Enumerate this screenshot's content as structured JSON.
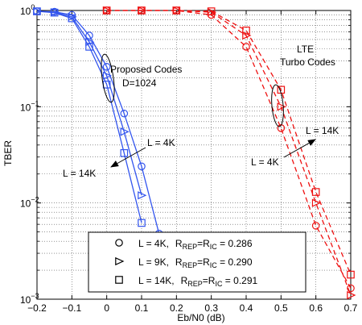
{
  "chart_data": {
    "type": "line",
    "xlabel": "Eb/N0 (dB)",
    "ylabel": "TBER",
    "xlim": [
      -0.2,
      0.7
    ],
    "ylim": [
      0.001,
      1
    ],
    "yscale": "log",
    "grid": true,
    "x_ticks": [
      -0.2,
      -0.1,
      0,
      0.1,
      0.2,
      0.3,
      0.4,
      0.5,
      0.6,
      0.7
    ],
    "x_tick_labels": [
      "−0.2",
      "−0.1",
      "0",
      "0.1",
      "0.2",
      "0.3",
      "0.4",
      "0.5",
      "0.6",
      "0.7"
    ],
    "y_ticks": [
      {
        "value": 1,
        "base": "10",
        "exp": "0"
      },
      {
        "value": 0.1,
        "base": "10",
        "exp": "−1"
      },
      {
        "value": 0.01,
        "base": "10",
        "exp": "−2"
      },
      {
        "value": 0.001,
        "base": "10",
        "exp": "−3"
      }
    ],
    "colors": {
      "proposed": "#3355ee",
      "lte": "#ee1111"
    },
    "series": [
      {
        "group": "proposed",
        "marker": "circle",
        "line": "solid",
        "x": [
          -0.2,
          -0.15,
          -0.1,
          -0.05,
          0.0,
          0.05,
          0.1,
          0.15
        ],
        "y": [
          0.98,
          0.97,
          0.9,
          0.55,
          0.26,
          0.085,
          0.024,
          0.0048
        ]
      },
      {
        "group": "proposed",
        "marker": "triangle",
        "line": "solid",
        "x": [
          -0.2,
          -0.15,
          -0.1,
          -0.05,
          0.0,
          0.05,
          0.1
        ],
        "y": [
          0.98,
          0.96,
          0.86,
          0.47,
          0.21,
          0.055,
          0.012
        ]
      },
      {
        "group": "proposed",
        "marker": "square",
        "line": "solid",
        "x": [
          -0.2,
          -0.15,
          -0.1,
          -0.05,
          0.0,
          0.05,
          0.1
        ],
        "y": [
          0.98,
          0.95,
          0.83,
          0.42,
          0.17,
          0.033,
          0.0062
        ]
      },
      {
        "group": "lte",
        "marker": "circle",
        "line": "dashed",
        "x": [
          0.0,
          0.1,
          0.2,
          0.3,
          0.4,
          0.5,
          0.6,
          0.7
        ],
        "y": [
          1,
          1,
          1,
          0.9,
          0.42,
          0.06,
          0.0058,
          0.0013
        ]
      },
      {
        "group": "lte",
        "marker": "triangle",
        "line": "dashed",
        "x": [
          0.0,
          0.1,
          0.2,
          0.3,
          0.4,
          0.5,
          0.6,
          0.7
        ],
        "y": [
          1,
          1,
          1,
          0.96,
          0.55,
          0.1,
          0.01,
          0.0011
        ]
      },
      {
        "group": "lte",
        "marker": "square",
        "line": "dashed",
        "x": [
          0.0,
          0.1,
          0.2,
          0.3,
          0.4,
          0.5,
          0.6,
          0.7
        ],
        "y": [
          1,
          1,
          1,
          0.98,
          0.62,
          0.15,
          0.013,
          0.0018
        ]
      }
    ],
    "annotations": {
      "proposed_line1": "Proposed Codes",
      "proposed_line2": "D=1024",
      "lte_line1": "LTE",
      "lte_line2": "Turbo Codes",
      "left_arrow_top": "L = 4K",
      "left_arrow_bottom": "L = 14K",
      "right_arrow_top": "L = 14K",
      "right_arrow_bottom": "L = 4K"
    },
    "legend": {
      "placement": "bottom-center",
      "entries": [
        {
          "marker": "circle",
          "L": "L = 4K,",
          "r1": "R",
          "sub1": "REP",
          "eq": "=R",
          "sub2": "IC",
          "val": " = 0.286"
        },
        {
          "marker": "triangle",
          "L": "L = 9K,",
          "r1": "R",
          "sub1": "REP",
          "eq": "=R",
          "sub2": "IC",
          "val": " = 0.290"
        },
        {
          "marker": "square",
          "L": "L = 14K,",
          "r1": "R",
          "sub1": "REP",
          "eq": "=R",
          "sub2": "IC",
          "val": " = 0.291"
        }
      ]
    }
  }
}
